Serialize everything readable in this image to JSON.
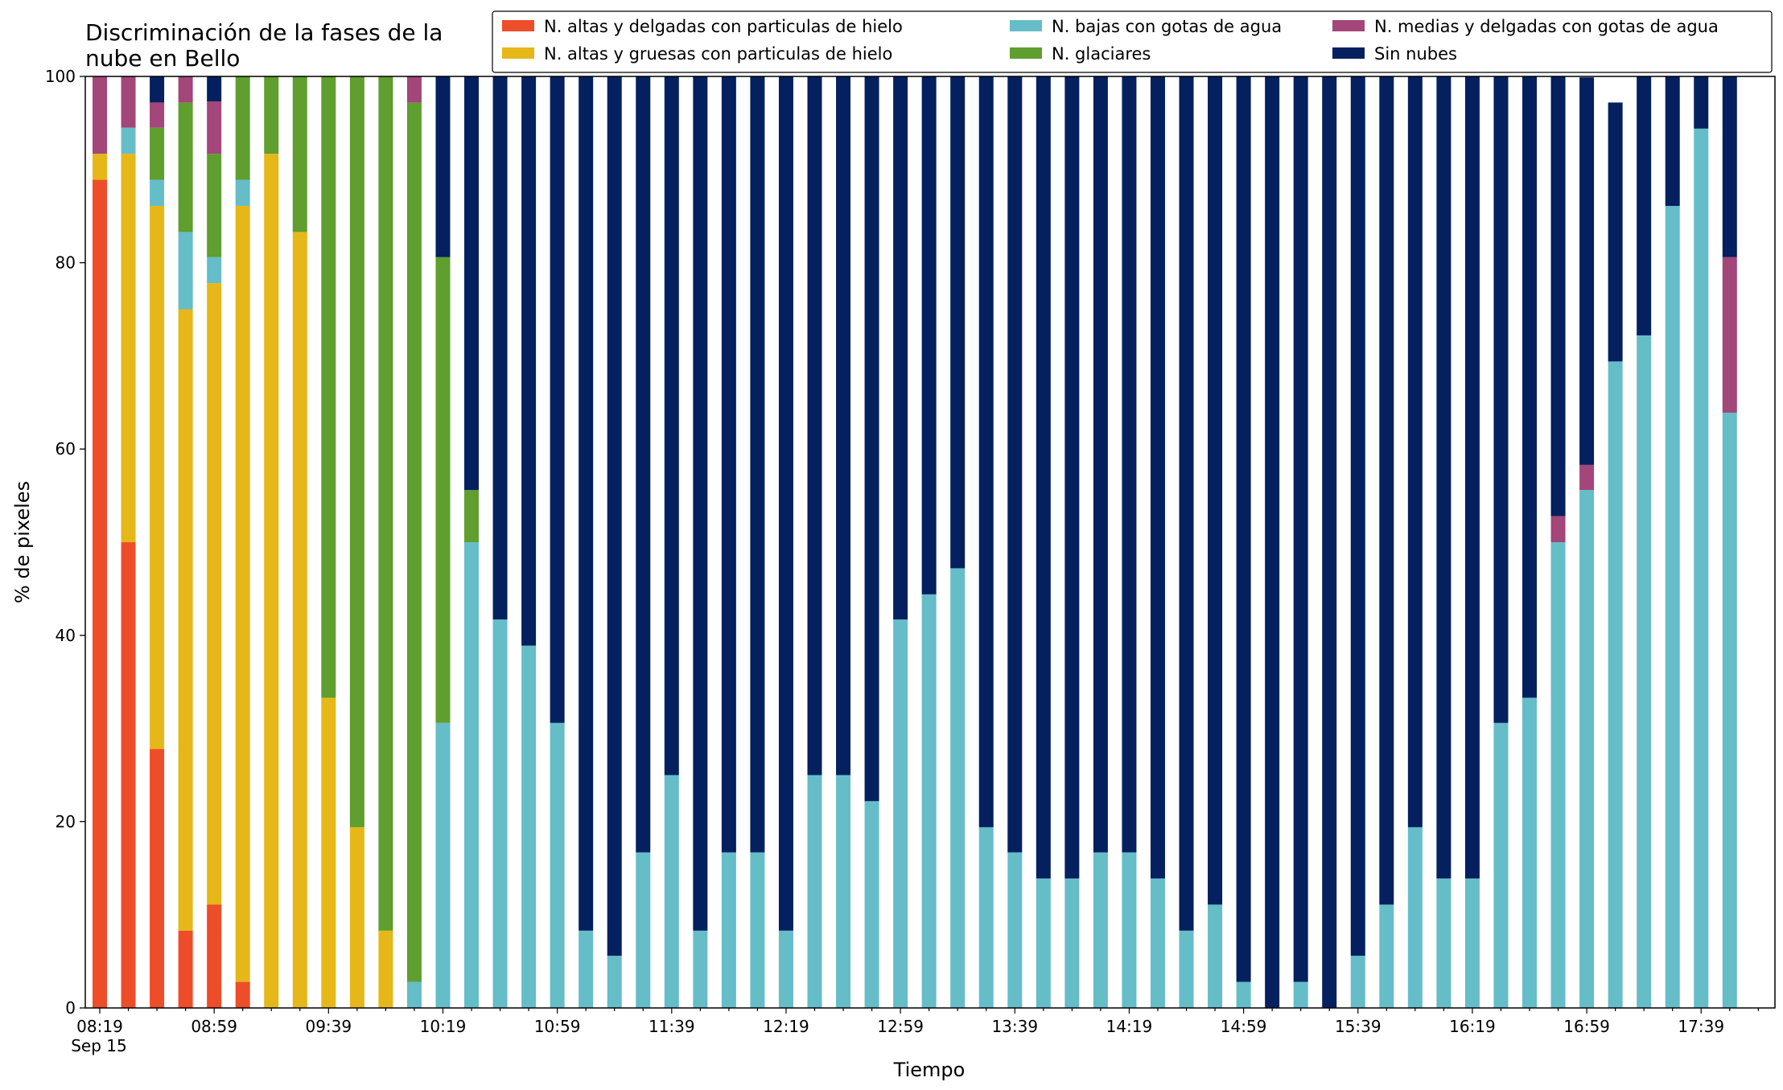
{
  "chart_data": {
    "type": "bar",
    "stacked": true,
    "title": "Discriminación de la fases de la nube en Bello",
    "xlabel": "Tiempo",
    "ylabel": "% de pixeles",
    "ylim": [
      0,
      100
    ],
    "yticks": [
      0,
      20,
      40,
      60,
      80,
      100
    ],
    "grid": false,
    "legend_position": "top-right",
    "date_label": "Sep 15",
    "xtick_labels": [
      "08:19",
      "08:59",
      "09:39",
      "10:19",
      "10:59",
      "11:39",
      "12:19",
      "12:59",
      "13:39",
      "14:19",
      "14:59",
      "15:39",
      "16:19",
      "16:59",
      "17:39"
    ],
    "categories": [
      "08:19",
      "08:29",
      "08:39",
      "08:49",
      "08:59",
      "09:09",
      "09:19",
      "09:29",
      "09:39",
      "09:49",
      "09:59",
      "10:09",
      "10:19",
      "10:29",
      "10:39",
      "10:49",
      "10:59",
      "11:09",
      "11:19",
      "11:29",
      "11:39",
      "11:49",
      "11:59",
      "12:09",
      "12:19",
      "12:29",
      "12:39",
      "12:49",
      "12:59",
      "13:09",
      "13:19",
      "13:29",
      "13:39",
      "13:49",
      "13:59",
      "14:09",
      "14:19",
      "14:29",
      "14:39",
      "14:49",
      "14:59",
      "15:09",
      "15:19",
      "15:29",
      "15:39",
      "15:49",
      "15:59",
      "16:09",
      "16:19",
      "16:29",
      "16:39",
      "16:49",
      "16:59",
      "17:09",
      "17:19",
      "17:29",
      "17:39",
      "17:49"
    ],
    "series": [
      {
        "name": "N. altas y delgadas con particulas de hielo",
        "color": "#ee4d2a",
        "values": [
          88.9,
          50,
          27.8,
          8.3,
          11.1,
          2.8,
          0,
          0,
          0,
          0,
          0,
          0,
          0,
          0,
          0,
          0,
          0,
          0,
          0,
          0,
          0,
          0,
          0,
          0,
          0,
          0,
          0,
          0,
          0,
          0,
          0,
          0,
          0,
          0,
          0,
          0,
          0,
          0,
          0,
          0,
          0,
          0,
          0,
          0,
          0,
          0,
          0,
          0,
          0,
          0,
          0,
          0,
          0,
          0,
          0,
          0,
          0,
          0
        ]
      },
      {
        "name": "N. altas y gruesas con particulas de hielo",
        "color": "#e5b718",
        "values": [
          2.8,
          41.7,
          58.3,
          66.7,
          66.7,
          83.3,
          91.7,
          83.3,
          33.3,
          19.4,
          8.3,
          0,
          0,
          0,
          0,
          0,
          0,
          0,
          0,
          0,
          0,
          0,
          0,
          0,
          0,
          0,
          0,
          0,
          0,
          0,
          0,
          0,
          0,
          0,
          0,
          0,
          0,
          0,
          0,
          0,
          0,
          0,
          0,
          0,
          0,
          0,
          0,
          0,
          0,
          0,
          0,
          0,
          0,
          0,
          0,
          0,
          0,
          0
        ]
      },
      {
        "name": "N. bajas con gotas de agua",
        "color": "#65bdc8",
        "values": [
          0,
          2.8,
          2.8,
          8.3,
          2.8,
          2.8,
          0,
          0,
          0,
          0,
          0,
          2.8,
          30.6,
          50,
          41.7,
          38.9,
          30.6,
          8.3,
          5.6,
          16.7,
          25,
          8.3,
          16.7,
          16.7,
          8.3,
          25,
          25,
          22.2,
          41.7,
          44.4,
          47.2,
          19.4,
          16.7,
          13.9,
          13.9,
          16.7,
          16.7,
          13.9,
          8.3,
          11.1,
          2.8,
          0,
          2.8,
          0,
          5.6,
          11.1,
          19.4,
          13.9,
          13.9,
          30.6,
          33.3,
          50,
          55.6,
          69.4,
          72.2,
          86.1,
          94.4,
          63.9
        ]
      },
      {
        "name": "N. glaciares",
        "color": "#5f9e2f",
        "values": [
          0,
          0,
          5.6,
          13.9,
          11.1,
          11.1,
          8.3,
          16.7,
          66.7,
          80.6,
          91.7,
          94.4,
          50,
          5.6,
          0,
          0,
          0,
          0,
          0,
          0,
          0,
          0,
          0,
          0,
          0,
          0,
          0,
          0,
          0,
          0,
          0,
          0,
          0,
          0,
          0,
          0,
          0,
          0,
          0,
          0,
          0,
          0,
          0,
          0,
          0,
          0,
          0,
          0,
          0,
          0,
          0,
          0,
          0,
          0,
          0,
          0,
          0,
          0
        ]
      },
      {
        "name": "N. medias y delgadas con gotas de agua",
        "color": "#a3467a",
        "values": [
          8.3,
          5.5,
          2.7,
          2.8,
          5.6,
          0,
          0,
          0,
          0,
          0,
          0,
          2.8,
          0,
          0,
          0,
          0,
          0,
          0,
          0,
          0,
          0,
          0,
          0,
          0,
          0,
          0,
          0,
          0,
          0,
          0,
          0,
          0,
          0,
          0,
          0,
          0,
          0,
          0,
          0,
          0,
          0,
          0,
          0,
          0,
          0,
          0,
          0,
          0,
          0,
          0,
          0,
          2.8,
          2.7,
          0,
          0,
          0,
          0,
          16.7
        ]
      },
      {
        "name": "Sin nubes",
        "color": "#04205f",
        "values": [
          0,
          0,
          2.8,
          0,
          2.8,
          0,
          0,
          0,
          0,
          0,
          0,
          0,
          19.4,
          44.4,
          58.3,
          61.1,
          69.4,
          91.7,
          94.4,
          83.3,
          75,
          91.7,
          83.3,
          83.3,
          91.7,
          75,
          75,
          77.8,
          58.3,
          55.6,
          52.8,
          80.6,
          83.3,
          86.1,
          86.1,
          83.3,
          83.3,
          86.1,
          91.7,
          88.9,
          97.2,
          100,
          97.2,
          100,
          94.4,
          88.9,
          80.6,
          86.1,
          86.1,
          69.4,
          66.7,
          50,
          41.6,
          27.8,
          27.8,
          13.9,
          5.6,
          19.4
        ]
      }
    ],
    "legend": {
      "entries": [
        {
          "label": "N. altas y delgadas con particulas de hielo",
          "color": "#ee4d2a"
        },
        {
          "label": "N. bajas con gotas de agua",
          "color": "#65bdc8"
        },
        {
          "label": "N. medias y delgadas con gotas de agua",
          "color": "#a3467a"
        },
        {
          "label": "N. altas y gruesas con particulas de hielo",
          "color": "#e5b718"
        },
        {
          "label": "N. glaciares",
          "color": "#5f9e2f"
        },
        {
          "label": "Sin nubes",
          "color": "#04205f"
        }
      ]
    }
  }
}
